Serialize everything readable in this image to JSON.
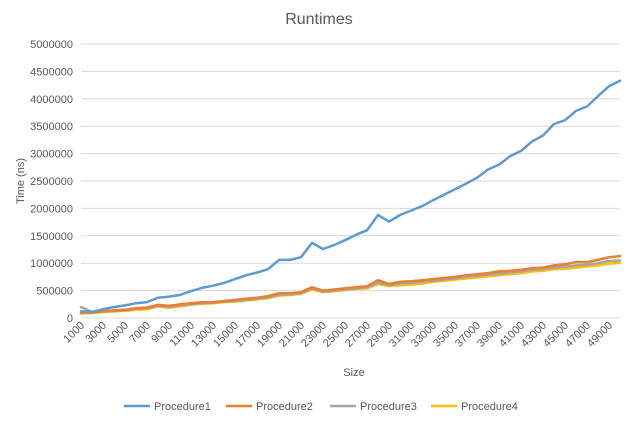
{
  "chart_data": {
    "type": "line",
    "title": "Runtimes",
    "xlabel": "Size",
    "ylabel": "Time (ns)",
    "ylim": [
      0,
      5000000
    ],
    "yticks": [
      0,
      500000,
      1000000,
      1500000,
      2000000,
      2500000,
      3000000,
      3500000,
      4000000,
      4500000,
      5000000
    ],
    "xticks": [
      1000,
      3000,
      5000,
      7000,
      9000,
      11000,
      13000,
      15000,
      17000,
      19000,
      21000,
      23000,
      25000,
      27000,
      29000,
      31000,
      33000,
      35000,
      37000,
      39000,
      41000,
      43000,
      45000,
      47000,
      49000
    ],
    "grid": true,
    "legend": "bottom",
    "x": [
      1000,
      2000,
      3000,
      4000,
      5000,
      6000,
      7000,
      8000,
      9000,
      10000,
      11000,
      12000,
      13000,
      14000,
      15000,
      16000,
      17000,
      18000,
      19000,
      20000,
      21000,
      22000,
      23000,
      24000,
      25000,
      26000,
      27000,
      28000,
      29000,
      30000,
      31000,
      32000,
      33000,
      34000,
      35000,
      36000,
      37000,
      38000,
      39000,
      40000,
      41000,
      42000,
      43000,
      44000,
      45000,
      46000,
      47000,
      48000,
      49000,
      50000
    ],
    "series": [
      {
        "name": "Procedure1",
        "color": "#5B9BD5",
        "values": [
          120000,
          110000,
          160000,
          200000,
          230000,
          270000,
          290000,
          370000,
          390000,
          420000,
          490000,
          550000,
          590000,
          640000,
          710000,
          780000,
          830000,
          890000,
          1060000,
          1060000,
          1110000,
          1370000,
          1260000,
          1330000,
          1420000,
          1520000,
          1600000,
          1880000,
          1760000,
          1880000,
          1960000,
          2040000,
          2150000,
          2250000,
          2350000,
          2450000,
          2560000,
          2710000,
          2800000,
          2950000,
          3050000,
          3220000,
          3330000,
          3540000,
          3610000,
          3780000,
          3860000,
          4050000,
          4230000,
          4330000
        ]
      },
      {
        "name": "Procedure2",
        "color": "#ED7D31",
        "values": [
          100000,
          100000,
          120000,
          140000,
          150000,
          180000,
          190000,
          240000,
          220000,
          250000,
          270000,
          290000,
          290000,
          310000,
          330000,
          350000,
          370000,
          400000,
          450000,
          450000,
          470000,
          560000,
          500000,
          520000,
          540000,
          560000,
          580000,
          690000,
          620000,
          660000,
          670000,
          690000,
          710000,
          730000,
          750000,
          780000,
          800000,
          820000,
          850000,
          860000,
          880000,
          910000,
          920000,
          960000,
          980000,
          1020000,
          1020000,
          1060000,
          1110000,
          1130000
        ]
      },
      {
        "name": "Procedure3",
        "color": "#A5A5A5",
        "values": [
          200000,
          110000,
          120000,
          130000,
          140000,
          170000,
          180000,
          220000,
          200000,
          230000,
          250000,
          270000,
          280000,
          300000,
          310000,
          330000,
          350000,
          380000,
          420000,
          430000,
          450000,
          540000,
          480000,
          500000,
          520000,
          540000,
          560000,
          640000,
          600000,
          630000,
          640000,
          660000,
          680000,
          700000,
          720000,
          750000,
          770000,
          790000,
          810000,
          830000,
          850000,
          880000,
          890000,
          920000,
          940000,
          960000,
          970000,
          1000000,
          1040000,
          1050000
        ]
      },
      {
        "name": "Procedure4",
        "color": "#FFC000",
        "values": [
          80000,
          90000,
          110000,
          120000,
          130000,
          150000,
          160000,
          210000,
          190000,
          210000,
          240000,
          260000,
          270000,
          290000,
          300000,
          320000,
          340000,
          360000,
          410000,
          420000,
          440000,
          520000,
          470000,
          490000,
          510000,
          530000,
          540000,
          620000,
          580000,
          600000,
          610000,
          630000,
          660000,
          680000,
          700000,
          720000,
          740000,
          760000,
          780000,
          800000,
          820000,
          850000,
          860000,
          890000,
          900000,
          920000,
          940000,
          960000,
          990000,
          1010000
        ]
      }
    ]
  }
}
